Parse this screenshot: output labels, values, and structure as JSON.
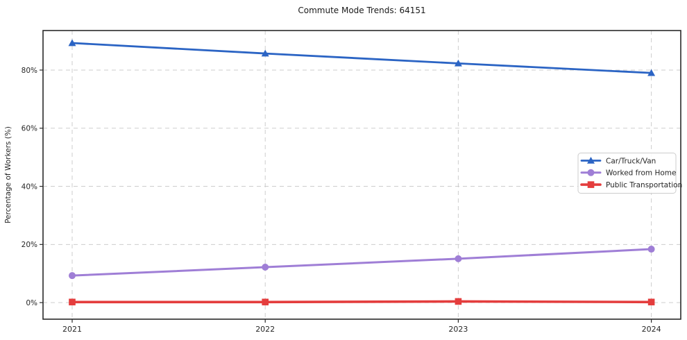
{
  "chart_data": {
    "type": "line",
    "title": "Commute Mode Trends: 64151",
    "xlabel": "",
    "ylabel": "Percentage of Workers (%)",
    "x": [
      2021,
      2022,
      2023,
      2024
    ],
    "series": [
      {
        "name": "Car/Truck/Van",
        "color": "#2b64c4",
        "marker": "triangle",
        "values": [
          89.3,
          85.7,
          82.3,
          79.0
        ]
      },
      {
        "name": "Worked from Home",
        "color": "#9f7ed6",
        "marker": "circle",
        "values": [
          9.3,
          12.2,
          15.1,
          18.4
        ]
      },
      {
        "name": "Public Transportation",
        "color": "#e43d3d",
        "marker": "square",
        "values": [
          0.2,
          0.2,
          0.4,
          0.2
        ]
      }
    ],
    "yticks": [
      0,
      20,
      40,
      60,
      80
    ],
    "ytick_labels": [
      "0%",
      "20%",
      "40%",
      "60%",
      "80%"
    ],
    "xtick_labels": [
      "2021",
      "2022",
      "2023",
      "2024"
    ],
    "ylim": [
      -5.7,
      93.6
    ],
    "grid": true,
    "grid_style": "dashed",
    "legend_position": "right-middle",
    "colors": {
      "grid": "#cdcdcd",
      "frame": "#2a2a2a",
      "text": "#262626",
      "legend_border": "#cccccc",
      "background": "#ffffff"
    }
  }
}
